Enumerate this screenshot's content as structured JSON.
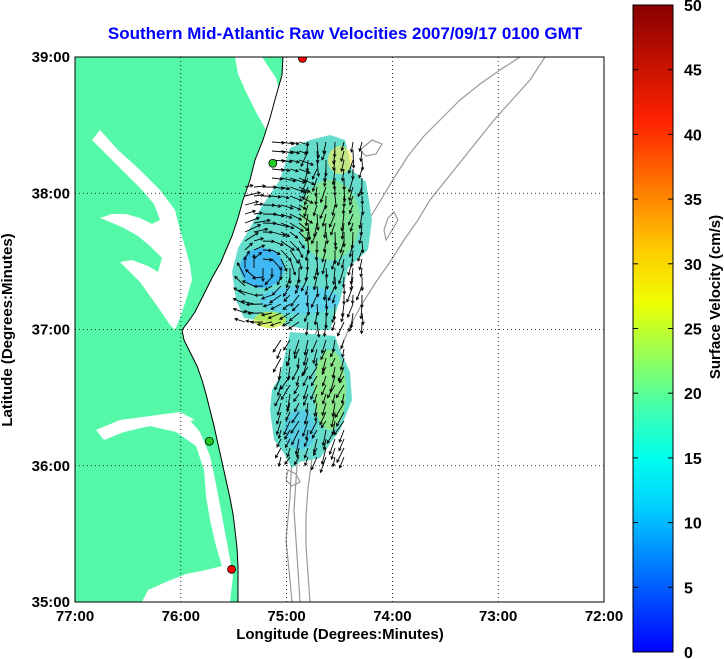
{
  "map": {
    "title": "Southern Mid-Atlantic Raw Velocities 2007/09/17 0100 GMT",
    "xlabel": "Longitude (Degrees:Minutes)",
    "ylabel": "Latitude (Degrees:Minutes)",
    "lon_range": [
      -77,
      -72
    ],
    "lat_range": [
      35,
      39
    ],
    "x_ticks": [
      {
        "value": -77,
        "label": "77:00"
      },
      {
        "value": -76,
        "label": "76:00"
      },
      {
        "value": -75,
        "label": "75:00"
      },
      {
        "value": -74,
        "label": "74:00"
      },
      {
        "value": -73,
        "label": "73:00"
      },
      {
        "value": -72,
        "label": "72:00"
      }
    ],
    "y_ticks": [
      {
        "value": 35,
        "label": "35:00"
      },
      {
        "value": 36,
        "label": "36:00"
      },
      {
        "value": 37,
        "label": "37:00"
      },
      {
        "value": 38,
        "label": "38:00"
      },
      {
        "value": 39,
        "label": "39:00"
      }
    ],
    "grid": "dotted",
    "colors": {
      "land": "#55f8a8",
      "water": "#ffffff",
      "coastline": "#000000",
      "bathymetry": "#999999",
      "arrows": "#000000",
      "title": "#0000ff"
    },
    "stations": [
      {
        "lon": -74.85,
        "lat": 38.99,
        "color": "#ff0000"
      },
      {
        "lon": -75.13,
        "lat": 38.22,
        "color": "#22cc22"
      },
      {
        "lon": -75.73,
        "lat": 36.18,
        "color": "#22cc22"
      },
      {
        "lon": -75.52,
        "lat": 35.24,
        "color": "#ff0000"
      }
    ]
  },
  "colorbar": {
    "label": "Surface Velocity (cm/s)",
    "min": 0,
    "max": 50,
    "ticks": [
      {
        "value": 0,
        "label": "0"
      },
      {
        "value": 5,
        "label": "5"
      },
      {
        "value": 10,
        "label": "10"
      },
      {
        "value": 15,
        "label": "15"
      },
      {
        "value": 20,
        "label": "20"
      },
      {
        "value": 25,
        "label": "25"
      },
      {
        "value": 30,
        "label": "30"
      },
      {
        "value": 35,
        "label": "35"
      },
      {
        "value": 40,
        "label": "40"
      },
      {
        "value": 45,
        "label": "45"
      },
      {
        "value": 50,
        "label": "50"
      }
    ],
    "stops": [
      "#0000ff",
      "#00aaff",
      "#00ffff",
      "#44ffaa",
      "#aaff44",
      "#ffff00",
      "#ffaa00",
      "#ff5500",
      "#ff0000",
      "#880000"
    ]
  }
}
